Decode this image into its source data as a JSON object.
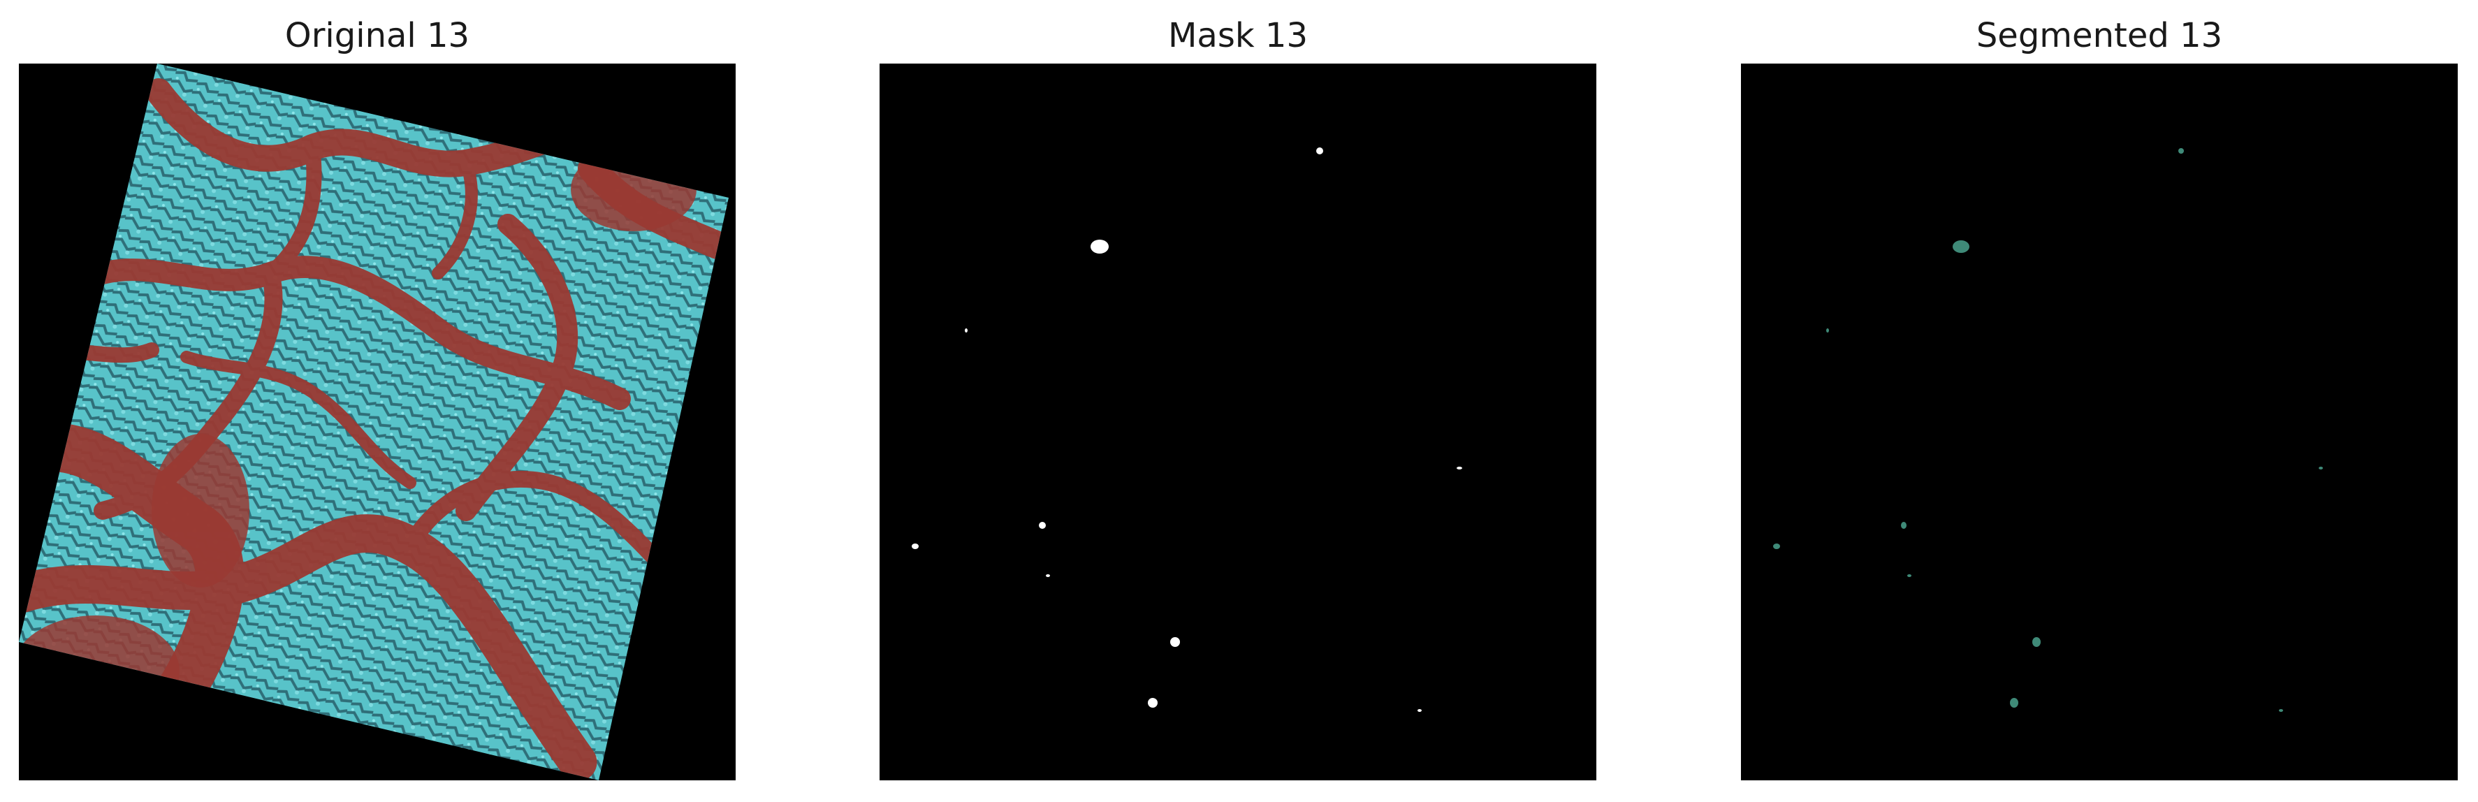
{
  "figure": {
    "panels": [
      {
        "title": "Original 13",
        "image": "satellite-scene-snow-and-valleys"
      },
      {
        "title": "Mask 13",
        "image": "binary-mask-white-blobs"
      },
      {
        "title": "Segmented 13",
        "image": "segmented-overlay-blobs"
      }
    ],
    "colors": {
      "background": "#000000",
      "snow": "#4fc1c8",
      "valley": "#9a3a33",
      "mask": "#ffffff",
      "segmented": "#3f8a78"
    }
  }
}
